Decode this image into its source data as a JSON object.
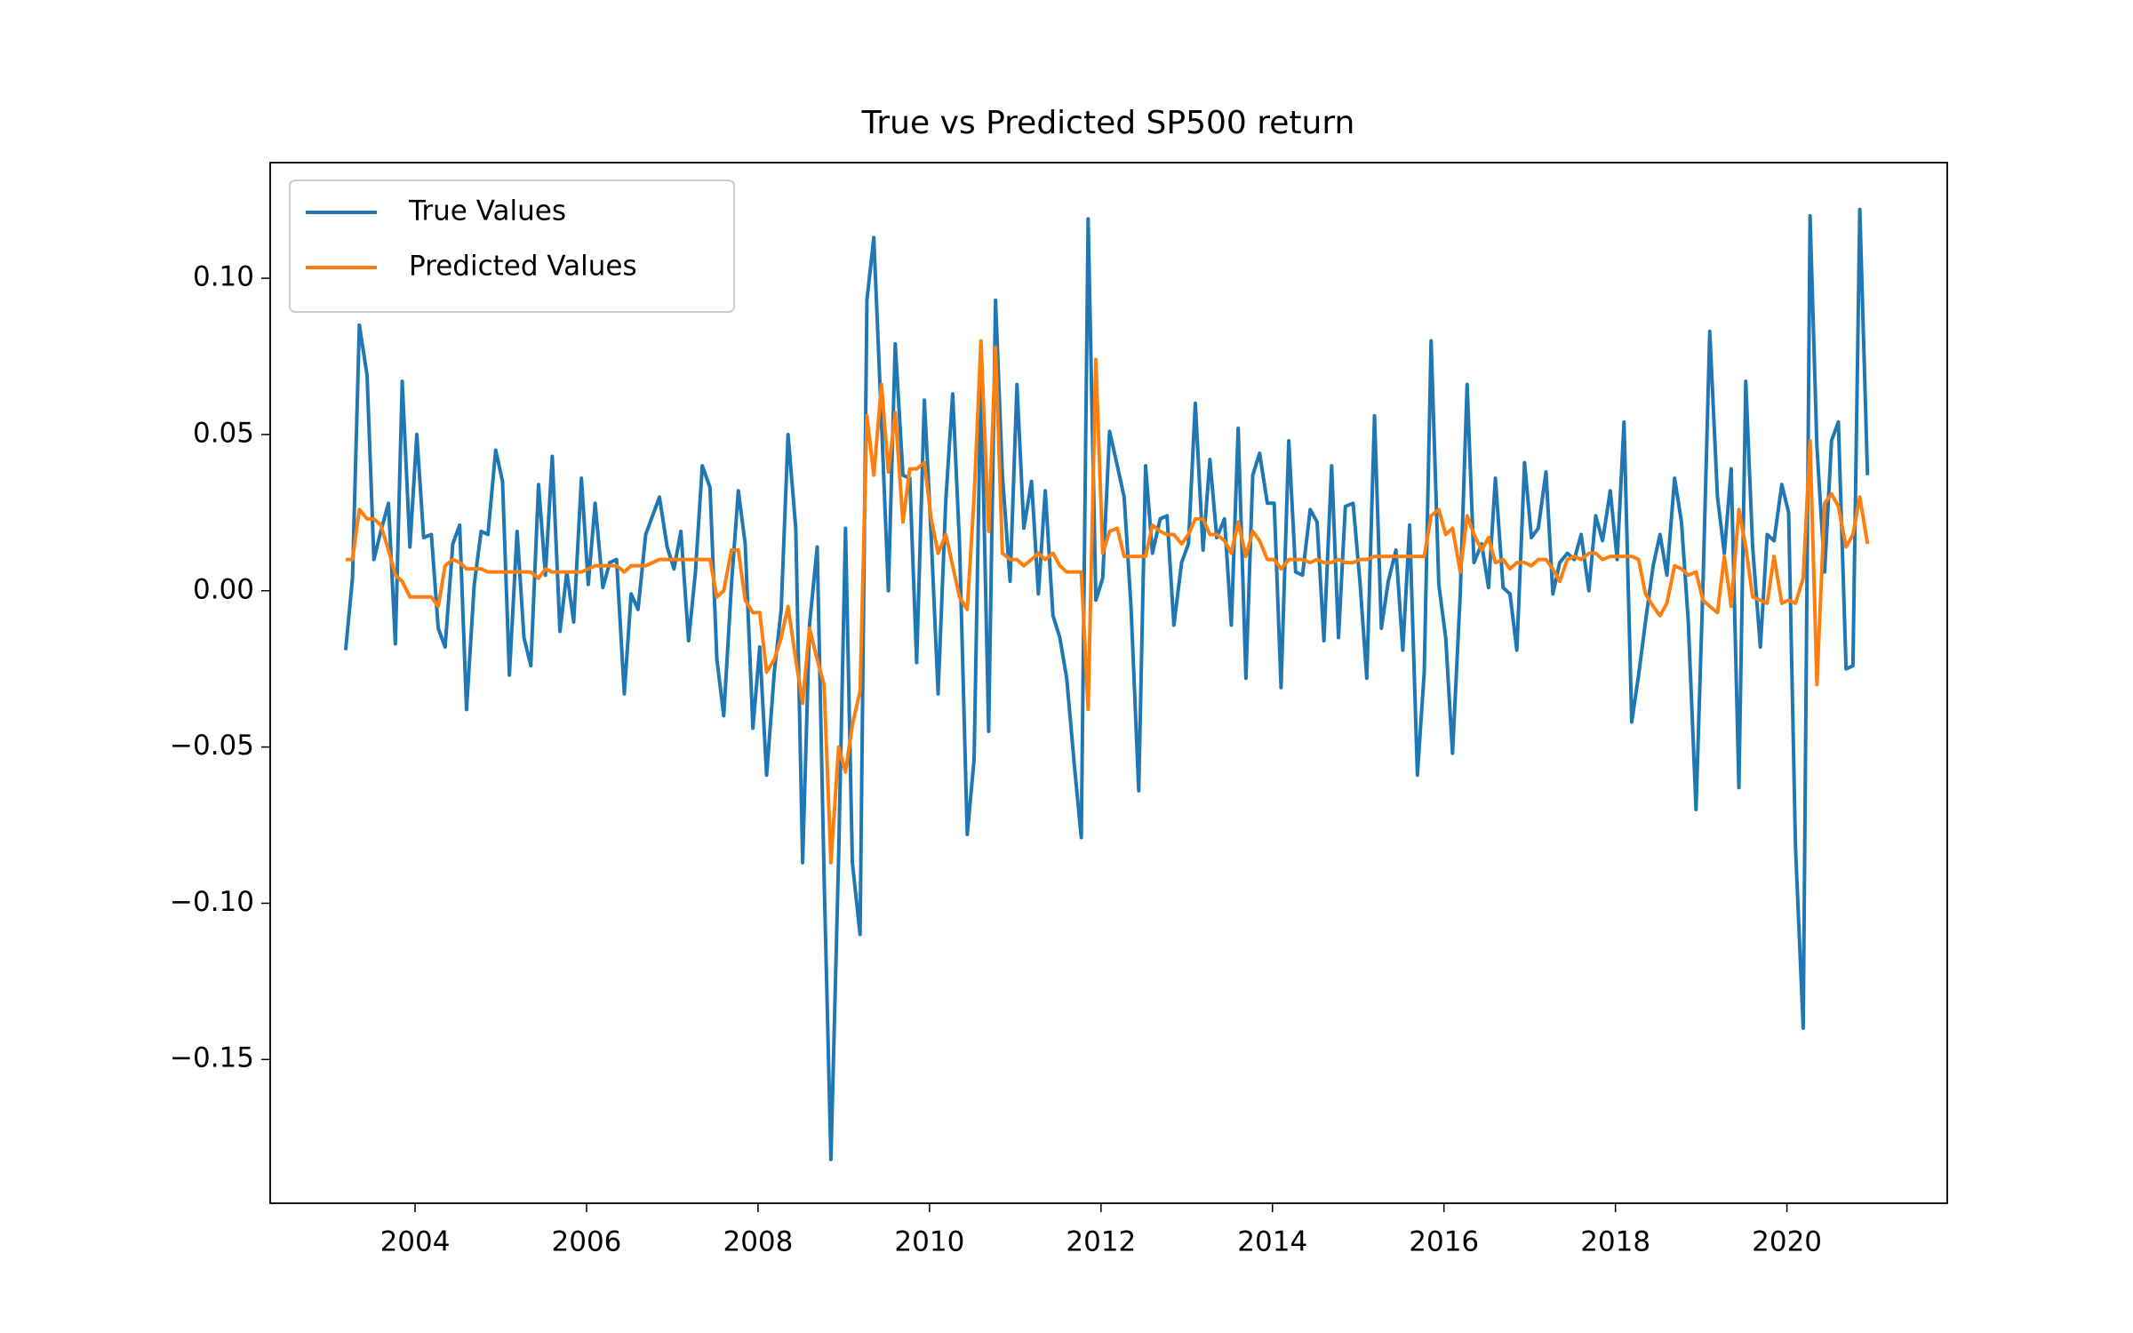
{
  "chart_data": {
    "type": "line",
    "title": "True vs Predicted SP500 return",
    "x": [
      2003.19,
      2003.27,
      2003.35,
      2003.44,
      2003.52,
      2003.6,
      2003.69,
      2003.77,
      2003.85,
      2003.94,
      2004.02,
      2004.1,
      2004.19,
      2004.27,
      2004.35,
      2004.44,
      2004.52,
      2004.6,
      2004.69,
      2004.77,
      2004.85,
      2004.94,
      2005.02,
      2005.1,
      2005.19,
      2005.27,
      2005.35,
      2005.44,
      2005.52,
      2005.6,
      2005.69,
      2005.77,
      2005.85,
      2005.94,
      2006.02,
      2006.1,
      2006.19,
      2006.27,
      2006.35,
      2006.44,
      2006.52,
      2006.6,
      2006.69,
      2006.77,
      2006.85,
      2006.94,
      2007.02,
      2007.1,
      2007.19,
      2007.27,
      2007.35,
      2007.44,
      2007.52,
      2007.6,
      2007.69,
      2007.77,
      2007.85,
      2007.94,
      2008.02,
      2008.1,
      2008.19,
      2008.27,
      2008.35,
      2008.44,
      2008.52,
      2008.6,
      2008.69,
      2008.77,
      2008.85,
      2008.94,
      2009.02,
      2009.1,
      2009.19,
      2009.27,
      2009.35,
      2009.44,
      2009.52,
      2009.6,
      2009.69,
      2009.77,
      2009.85,
      2009.94,
      2010.02,
      2010.1,
      2010.19,
      2010.27,
      2010.35,
      2010.44,
      2010.52,
      2010.6,
      2010.69,
      2010.77,
      2010.85,
      2010.94,
      2011.02,
      2011.1,
      2011.19,
      2011.27,
      2011.35,
      2011.44,
      2011.52,
      2011.6,
      2011.69,
      2011.77,
      2011.85,
      2011.94,
      2012.02,
      2012.1,
      2012.19,
      2012.27,
      2012.35,
      2012.44,
      2012.52,
      2012.6,
      2012.69,
      2012.77,
      2012.85,
      2012.94,
      2013.02,
      2013.1,
      2013.19,
      2013.27,
      2013.35,
      2013.44,
      2013.52,
      2013.6,
      2013.69,
      2013.77,
      2013.85,
      2013.94,
      2014.02,
      2014.1,
      2014.19,
      2014.27,
      2014.35,
      2014.44,
      2014.52,
      2014.6,
      2014.69,
      2014.77,
      2014.85,
      2014.94,
      2015.02,
      2015.1,
      2015.19,
      2015.27,
      2015.35,
      2015.44,
      2015.52,
      2015.6,
      2015.69,
      2015.77,
      2015.85,
      2015.94,
      2016.02,
      2016.1,
      2016.19,
      2016.27,
      2016.35,
      2016.44,
      2016.52,
      2016.6,
      2016.69,
      2016.77,
      2016.85,
      2016.94,
      2017.02,
      2017.1,
      2017.19,
      2017.27,
      2017.35,
      2017.44,
      2017.52,
      2017.6,
      2017.69,
      2017.77,
      2017.85,
      2017.94,
      2018.02,
      2018.1,
      2018.19,
      2018.27,
      2018.35,
      2018.44,
      2018.52,
      2018.6,
      2018.69,
      2018.77,
      2018.85,
      2018.94,
      2019.02,
      2019.1,
      2019.19,
      2019.27,
      2019.35,
      2019.44,
      2019.52,
      2019.6,
      2019.69,
      2019.77,
      2019.85,
      2019.94,
      2020.02,
      2020.1,
      2020.19,
      2020.27,
      2020.35,
      2020.44,
      2020.52,
      2020.6,
      2020.69,
      2020.77,
      2020.85,
      2020.94
    ],
    "series": [
      {
        "name": "True Values",
        "color": "#1f77b4",
        "values": [
          -0.019,
          0.004,
          0.085,
          0.069,
          0.01,
          0.019,
          0.028,
          -0.017,
          0.067,
          0.014,
          0.05,
          0.017,
          0.018,
          -0.012,
          -0.018,
          0.015,
          0.021,
          -0.038,
          0.002,
          0.019,
          0.018,
          0.045,
          0.035,
          -0.027,
          0.019,
          -0.015,
          -0.024,
          0.034,
          0.005,
          0.043,
          -0.013,
          0.006,
          -0.01,
          0.036,
          0.002,
          0.028,
          0.001,
          0.009,
          0.01,
          -0.033,
          -0.001,
          -0.006,
          0.018,
          0.024,
          0.03,
          0.014,
          0.007,
          0.019,
          -0.016,
          0.006,
          0.04,
          0.033,
          -0.022,
          -0.04,
          0.002,
          0.032,
          0.015,
          -0.044,
          -0.018,
          -0.059,
          -0.026,
          -0.006,
          0.05,
          0.02,
          -0.087,
          -0.011,
          0.014,
          -0.091,
          -0.182,
          -0.085,
          0.02,
          -0.087,
          -0.11,
          0.093,
          0.113,
          0.054,
          0.0,
          0.079,
          0.037,
          0.036,
          -0.023,
          0.061,
          0.017,
          -0.033,
          0.029,
          0.063,
          0.015,
          -0.078,
          -0.054,
          0.069,
          -0.045,
          0.093,
          0.037,
          0.003,
          0.066,
          0.02,
          0.035,
          -0.001,
          0.032,
          -0.008,
          -0.015,
          -0.028,
          -0.056,
          -0.079,
          0.119,
          -0.003,
          0.004,
          0.051,
          0.04,
          0.03,
          -0.005,
          -0.064,
          0.04,
          0.012,
          0.023,
          0.024,
          -0.011,
          0.009,
          0.015,
          0.06,
          0.013,
          0.042,
          0.017,
          0.023,
          -0.011,
          0.052,
          -0.028,
          0.037,
          0.044,
          0.028,
          0.028,
          -0.031,
          0.048,
          0.006,
          0.005,
          0.026,
          0.022,
          -0.016,
          0.04,
          -0.015,
          0.027,
          0.028,
          0.003,
          -0.028,
          0.056,
          -0.012,
          0.003,
          0.013,
          -0.019,
          0.021,
          -0.059,
          -0.026,
          0.08,
          0.002,
          -0.015,
          -0.052,
          -0.001,
          0.066,
          0.009,
          0.015,
          0.001,
          0.036,
          0.001,
          -0.001,
          -0.019,
          0.041,
          0.017,
          0.02,
          0.038,
          -0.001,
          0.009,
          0.012,
          0.01,
          0.018,
          0.0,
          0.024,
          0.016,
          0.032,
          0.01,
          0.054,
          -0.042,
          -0.027,
          -0.01,
          0.008,
          0.018,
          0.005,
          0.036,
          0.022,
          -0.01,
          -0.07,
          0.001,
          0.083,
          0.03,
          0.012,
          0.039,
          -0.063,
          0.067,
          0.014,
          -0.018,
          0.018,
          0.016,
          0.034,
          0.025,
          -0.082,
          -0.14,
          0.12,
          0.046,
          0.006,
          0.048,
          0.054,
          -0.025,
          -0.024,
          0.122,
          0.037
        ]
      },
      {
        "name": "Predicted Values",
        "color": "#ff7f0e",
        "values": [
          0.01,
          0.01,
          0.026,
          0.023,
          0.023,
          0.021,
          0.013,
          0.005,
          0.003,
          -0.002,
          -0.002,
          -0.002,
          -0.002,
          -0.005,
          0.008,
          0.01,
          0.009,
          0.007,
          0.007,
          0.007,
          0.006,
          0.006,
          0.006,
          0.006,
          0.006,
          0.006,
          0.006,
          0.004,
          0.007,
          0.006,
          0.006,
          0.006,
          0.006,
          0.006,
          0.007,
          0.008,
          0.008,
          0.008,
          0.008,
          0.006,
          0.008,
          0.008,
          0.008,
          0.009,
          0.01,
          0.01,
          0.01,
          0.01,
          0.01,
          0.01,
          0.01,
          0.01,
          -0.002,
          0.0,
          0.013,
          0.013,
          -0.003,
          -0.007,
          -0.007,
          -0.026,
          -0.022,
          -0.015,
          -0.005,
          -0.022,
          -0.036,
          -0.012,
          -0.022,
          -0.03,
          -0.087,
          -0.05,
          -0.058,
          -0.043,
          -0.032,
          0.056,
          0.037,
          0.066,
          0.038,
          0.057,
          0.022,
          0.039,
          0.039,
          0.041,
          0.023,
          0.012,
          0.018,
          0.008,
          -0.002,
          -0.006,
          0.03,
          0.08,
          0.019,
          0.078,
          0.012,
          0.01,
          0.01,
          0.008,
          0.01,
          0.012,
          0.01,
          0.012,
          0.008,
          0.006,
          0.006,
          0.006,
          -0.038,
          0.074,
          0.012,
          0.019,
          0.02,
          0.011,
          0.011,
          0.011,
          0.011,
          0.021,
          0.019,
          0.018,
          0.018,
          0.015,
          0.018,
          0.023,
          0.023,
          0.018,
          0.018,
          0.016,
          0.012,
          0.022,
          0.011,
          0.019,
          0.016,
          0.01,
          0.01,
          0.007,
          0.01,
          0.01,
          0.01,
          0.009,
          0.01,
          0.009,
          0.009,
          0.01,
          0.009,
          0.009,
          0.01,
          0.01,
          0.011,
          0.011,
          0.011,
          0.011,
          0.011,
          0.011,
          0.011,
          0.011,
          0.024,
          0.026,
          0.018,
          0.02,
          0.006,
          0.024,
          0.018,
          0.013,
          0.017,
          0.009,
          0.01,
          0.007,
          0.009,
          0.009,
          0.008,
          0.01,
          0.01,
          0.007,
          0.003,
          0.01,
          0.011,
          0.01,
          0.012,
          0.012,
          0.01,
          0.011,
          0.011,
          0.011,
          0.011,
          0.01,
          -0.001,
          -0.005,
          -0.008,
          -0.004,
          0.008,
          0.007,
          0.005,
          0.006,
          -0.003,
          -0.005,
          -0.007,
          0.011,
          -0.005,
          0.026,
          0.014,
          -0.002,
          -0.003,
          -0.004,
          0.011,
          -0.004,
          -0.003,
          -0.004,
          0.004,
          0.048,
          -0.03,
          0.028,
          0.031,
          0.027,
          0.014,
          0.018,
          0.03,
          0.015
        ]
      }
    ],
    "xlim": [
      2002.31,
      2021.87
    ],
    "ylim": [
      -0.196,
      0.137
    ],
    "xticks": [
      2004,
      2006,
      2008,
      2010,
      2012,
      2014,
      2016,
      2018,
      2020
    ],
    "yticks": [
      {
        "value": -0.15,
        "label": "−0.15"
      },
      {
        "value": -0.1,
        "label": "−0.10"
      },
      {
        "value": -0.05,
        "label": "−0.05"
      },
      {
        "value": 0,
        "label": "0.00"
      },
      {
        "value": 0.05,
        "label": "0.05"
      },
      {
        "value": 0.1,
        "label": "0.10"
      }
    ],
    "grid": false,
    "legend": "upper left"
  }
}
